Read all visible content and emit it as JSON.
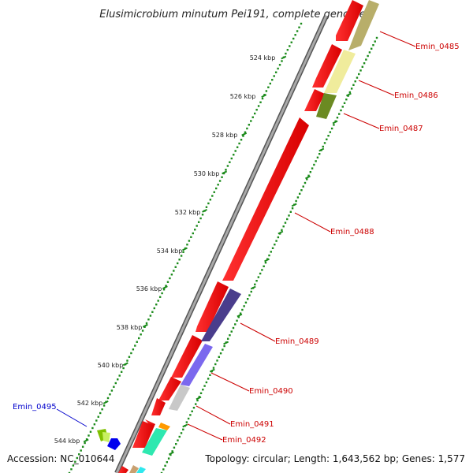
{
  "title": "Elusimicrobium minutum Pei191, complete genome",
  "footer": {
    "accession": "Accession: NC_010644",
    "topology": "Topology: circular; Length: 1,643,562 bp; Genes: 1,577"
  },
  "ticks": [
    "524 kbp",
    "526 kbp",
    "528 kbp",
    "530 kbp",
    "532 kbp",
    "534 kbp",
    "536 kbp",
    "538 kbp",
    "540 kbp",
    "542 kbp",
    "544 kbp"
  ],
  "gene_labels": [
    {
      "text": "Emin_0485",
      "color": "#cc0000"
    },
    {
      "text": "Emin_0486",
      "color": "#cc0000"
    },
    {
      "text": "Emin_0487",
      "color": "#cc0000"
    },
    {
      "text": "Emin_0488",
      "color": "#cc0000"
    },
    {
      "text": "Emin_0489",
      "color": "#cc0000"
    },
    {
      "text": "Emin_0490",
      "color": "#cc0000"
    },
    {
      "text": "Emin_0491",
      "color": "#cc0000"
    },
    {
      "text": "Emin_0492",
      "color": "#cc0000"
    },
    {
      "text": "Emin_0495",
      "color": "#0000cc"
    }
  ],
  "colors": {
    "backbone": "#888888",
    "tick_dots": "#1a8a1a",
    "forward_gene": "#ee0000",
    "emin_0486": "#f0ec9c",
    "emin_0487": "#6b8a22",
    "emin_0489": "#4a3d8c",
    "emin_0490": "#7b68ee",
    "emin_0491": "#c8c8c8"
  }
}
